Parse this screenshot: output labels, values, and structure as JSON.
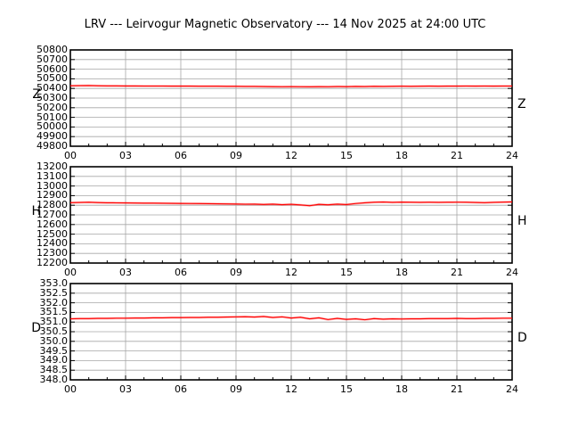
{
  "title": "LRV --- Leirvogur Magnetic Observatory --- 14 Nov 2025 at 24:00 UTC",
  "colors": {
    "trace": "#ff0000",
    "trace_halo": "rgba(255,0,0,0.30)",
    "grid": "#a6a6a6",
    "axis": "#000000",
    "background": "#ffffff"
  },
  "x_axis": {
    "range_hours": [
      0,
      24
    ],
    "major_step_hours": 3,
    "minor_step_hours": 1,
    "major_tick_labels": [
      "00",
      "03",
      "06",
      "09",
      "12",
      "15",
      "18",
      "21",
      "24"
    ]
  },
  "chart_data": [
    {
      "type": "line",
      "component": "Z",
      "left_label": "Z",
      "right_label": "Z",
      "ylim": [
        49800,
        50800
      ],
      "ytick_step": 100,
      "ytick_labels": [
        "50800",
        "50700",
        "50600",
        "50500",
        "50400",
        "50300",
        "50200",
        "50100",
        "50000",
        "49900",
        "49800"
      ],
      "x_start_hour": 0,
      "x_step_hours": 0.5,
      "values": [
        50428,
        50429,
        50430,
        50428,
        50427,
        50427,
        50426,
        50426,
        50425,
        50425,
        50425,
        50424,
        50424,
        50424,
        50423,
        50423,
        50423,
        50422,
        50422,
        50421,
        50421,
        50420,
        50419,
        50418,
        50419,
        50418,
        50417,
        50419,
        50418,
        50420,
        50419,
        50421,
        50420,
        50422,
        50421,
        50422,
        50423,
        50422,
        50423,
        50424,
        50423,
        50424,
        50424,
        50425,
        50424,
        50425,
        50424,
        50425,
        50425
      ]
    },
    {
      "type": "line",
      "component": "H",
      "left_label": "H",
      "right_label": "H",
      "ylim": [
        12200,
        13200
      ],
      "ytick_step": 100,
      "ytick_labels": [
        "13200",
        "13100",
        "13000",
        "12900",
        "12800",
        "12700",
        "12600",
        "12500",
        "12400",
        "12300",
        "12200"
      ],
      "x_start_hour": 0,
      "x_step_hours": 0.5,
      "values": [
        12827,
        12829,
        12831,
        12828,
        12826,
        12825,
        12824,
        12823,
        12822,
        12822,
        12821,
        12820,
        12819,
        12818,
        12817,
        12816,
        12815,
        12814,
        12813,
        12811,
        12812,
        12808,
        12812,
        12806,
        12810,
        12804,
        12795,
        12809,
        12805,
        12812,
        12807,
        12818,
        12826,
        12831,
        12834,
        12830,
        12833,
        12831,
        12830,
        12831,
        12830,
        12831,
        12832,
        12831,
        12829,
        12827,
        12830,
        12833,
        12835
      ]
    },
    {
      "type": "line",
      "component": "D",
      "left_label": "D",
      "right_label": "D",
      "ylim": [
        348.0,
        353.0
      ],
      "ytick_step": 0.5,
      "ytick_labels": [
        "353.0",
        "352.5",
        "352.0",
        "351.5",
        "351.0",
        "350.5",
        "350.0",
        "349.5",
        "349.0",
        "348.5",
        "348.0"
      ],
      "x_start_hour": 0,
      "x_step_hours": 0.5,
      "values": [
        351.17,
        351.18,
        351.18,
        351.19,
        351.19,
        351.2,
        351.2,
        351.21,
        351.21,
        351.22,
        351.22,
        351.23,
        351.23,
        351.24,
        351.24,
        351.25,
        351.25,
        351.26,
        351.27,
        351.28,
        351.26,
        351.29,
        351.24,
        351.27,
        351.21,
        351.25,
        351.17,
        351.22,
        351.13,
        351.19,
        351.14,
        351.17,
        351.12,
        351.18,
        351.15,
        351.17,
        351.16,
        351.17,
        351.17,
        351.18,
        351.18,
        351.18,
        351.19,
        351.18,
        351.18,
        351.19,
        351.19,
        351.2,
        351.2
      ]
    }
  ]
}
